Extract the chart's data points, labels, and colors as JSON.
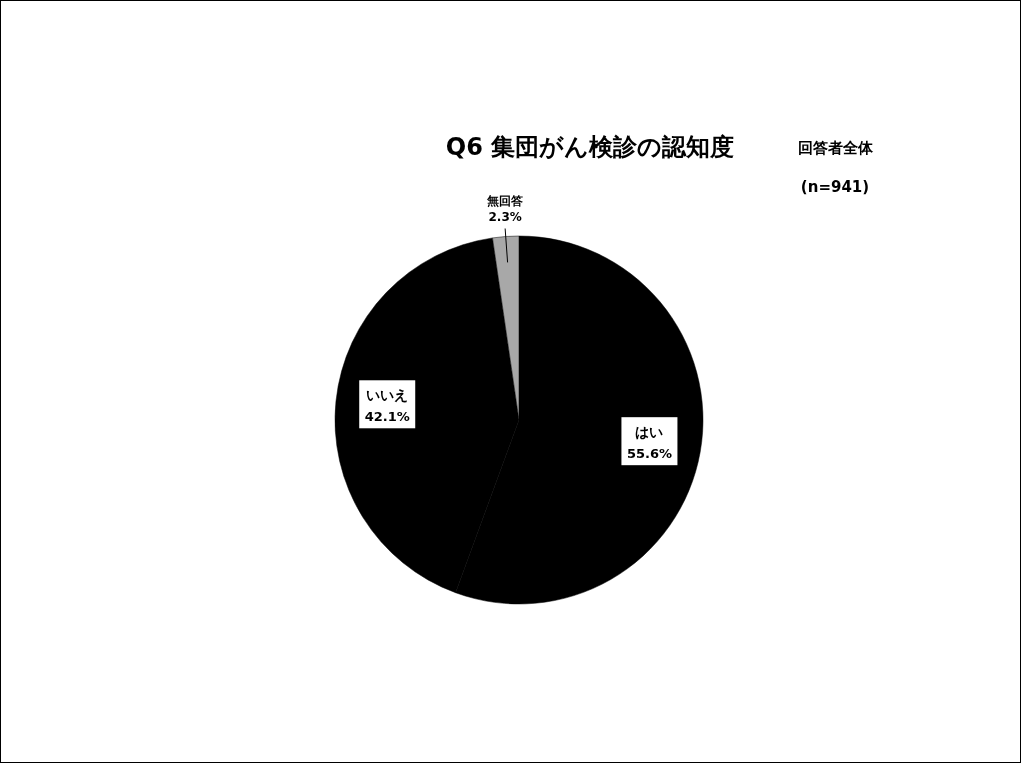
{
  "chart_data": {
    "type": "pie",
    "title": "Q6 集団がん検診の認知度",
    "subtitle": "回答者全体",
    "annotations": [
      "(n=941)"
    ],
    "categories": [
      "はい",
      "いいえ",
      "無回答"
    ],
    "values": [
      55.6,
      42.1,
      2.3
    ],
    "value_labels": [
      "55.6%",
      "42.1%",
      "2.3%"
    ],
    "colors": [
      "#000000",
      "#000000",
      "#a8a8a8"
    ]
  }
}
